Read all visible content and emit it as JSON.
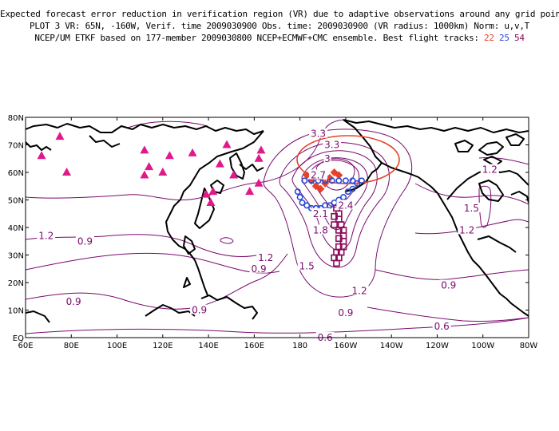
{
  "header": {
    "line1": "Expected forecast error reduction in verification region (VR) due to adaptive observations around any grid point.",
    "line2": "PLOT 3 VR: 65N, -160W, Verif. time 2009030900 Obs. time: 2009030900 (VR radius: 1000km) Norm: u,v,T",
    "line3_prefix": "NCEP/UM ETKF based on 177-member 2009030800 NCEP+ECMWF+CMC ensemble. Best flight tracks:",
    "track_22": "22",
    "track_25": "25",
    "track_54": "54"
  },
  "colors": {
    "track_22": "#e8412a",
    "track_25": "#2a4ad8",
    "track_54": "#8a0a5a",
    "contour": "#7a0a6e",
    "triangle": "#e0198a",
    "coast": "#000000"
  },
  "axes": {
    "x_ticks": [
      "60E",
      "80E",
      "100E",
      "120E",
      "140E",
      "160E",
      "180",
      "160W",
      "140W",
      "120W",
      "100W",
      "80W"
    ],
    "y_ticks": [
      "80N",
      "70N",
      "60N",
      "50N",
      "40N",
      "30N",
      "20N",
      "10N",
      "EQ"
    ]
  },
  "map_data": {
    "lon_range": [
      60,
      280
    ],
    "lat_range": [
      0,
      80
    ],
    "triangle_sites": [
      {
        "lon": 67,
        "lat": 66
      },
      {
        "lon": 75,
        "lat": 73
      },
      {
        "lon": 78,
        "lat": 60
      },
      {
        "lon": 112,
        "lat": 68
      },
      {
        "lon": 114,
        "lat": 62
      },
      {
        "lon": 112,
        "lat": 59
      },
      {
        "lon": 120,
        "lat": 60
      },
      {
        "lon": 123,
        "lat": 66
      },
      {
        "lon": 133,
        "lat": 67
      },
      {
        "lon": 139,
        "lat": 52
      },
      {
        "lon": 142,
        "lat": 53
      },
      {
        "lon": 141,
        "lat": 49
      },
      {
        "lon": 145,
        "lat": 63
      },
      {
        "lon": 148,
        "lat": 70
      },
      {
        "lon": 151,
        "lat": 59
      },
      {
        "lon": 163,
        "lat": 68
      },
      {
        "lon": 162,
        "lat": 65
      },
      {
        "lon": 158,
        "lat": 53
      },
      {
        "lon": 162,
        "lat": 56
      }
    ],
    "track_22": [
      {
        "lon": 183,
        "lat": 59
      },
      {
        "lon": 185,
        "lat": 57
      },
      {
        "lon": 187,
        "lat": 55
      },
      {
        "lon": 189,
        "lat": 54
      },
      {
        "lon": 191,
        "lat": 56
      },
      {
        "lon": 193,
        "lat": 58
      },
      {
        "lon": 195,
        "lat": 60
      },
      {
        "lon": 197,
        "lat": 59
      }
    ],
    "track_25": [
      {
        "lon": 179,
        "lat": 53
      },
      {
        "lon": 180,
        "lat": 51
      },
      {
        "lon": 181,
        "lat": 49
      },
      {
        "lon": 183,
        "lat": 48
      },
      {
        "lon": 185,
        "lat": 47
      },
      {
        "lon": 187,
        "lat": 47
      },
      {
        "lon": 189,
        "lat": 47
      },
      {
        "lon": 191,
        "lat": 48
      },
      {
        "lon": 193,
        "lat": 48
      },
      {
        "lon": 195,
        "lat": 49
      },
      {
        "lon": 197,
        "lat": 50
      },
      {
        "lon": 199,
        "lat": 51
      },
      {
        "lon": 201,
        "lat": 53
      },
      {
        "lon": 203,
        "lat": 54
      },
      {
        "lon": 205,
        "lat": 56
      },
      {
        "lon": 207,
        "lat": 57
      },
      {
        "lon": 203,
        "lat": 57
      },
      {
        "lon": 200,
        "lat": 57
      },
      {
        "lon": 197,
        "lat": 57
      },
      {
        "lon": 194,
        "lat": 57
      },
      {
        "lon": 191,
        "lat": 57
      },
      {
        "lon": 188,
        "lat": 57
      },
      {
        "lon": 185,
        "lat": 57
      },
      {
        "lon": 182,
        "lat": 57
      }
    ],
    "track_54": [
      {
        "lon": 196,
        "lat": 47
      },
      {
        "lon": 197,
        "lat": 45
      },
      {
        "lon": 197,
        "lat": 43
      },
      {
        "lon": 198,
        "lat": 41
      },
      {
        "lon": 199,
        "lat": 39
      },
      {
        "lon": 199,
        "lat": 37
      },
      {
        "lon": 199,
        "lat": 35
      },
      {
        "lon": 199,
        "lat": 33
      },
      {
        "lon": 198,
        "lat": 31
      },
      {
        "lon": 197,
        "lat": 29
      },
      {
        "lon": 196,
        "lat": 27
      },
      {
        "lon": 195,
        "lat": 29
      },
      {
        "lon": 196,
        "lat": 31
      },
      {
        "lon": 197,
        "lat": 33
      },
      {
        "lon": 197,
        "lat": 36
      },
      {
        "lon": 197,
        "lat": 39
      },
      {
        "lon": 195,
        "lat": 41
      },
      {
        "lon": 195,
        "lat": 44
      }
    ],
    "verification_circle": {
      "lon": 200,
      "lat": 65
    },
    "contour_labels": [
      {
        "text": "1.2",
        "lon": 69,
        "lat": 37
      },
      {
        "text": "0.9",
        "lon": 86,
        "lat": 35
      },
      {
        "text": "0.9",
        "lon": 81,
        "lat": 13
      },
      {
        "text": "0.9",
        "lon": 136,
        "lat": 10
      },
      {
        "text": "0.9",
        "lon": 162,
        "lat": 25
      },
      {
        "text": "1.2",
        "lon": 165,
        "lat": 29
      },
      {
        "text": "1.5",
        "lon": 183,
        "lat": 26
      },
      {
        "text": "1.8",
        "lon": 189,
        "lat": 39
      },
      {
        "text": "2.1",
        "lon": 189,
        "lat": 45
      },
      {
        "text": "2.4",
        "lon": 200,
        "lat": 48
      },
      {
        "text": "2.7",
        "lon": 188,
        "lat": 59
      },
      {
        "text": "3",
        "lon": 192,
        "lat": 65
      },
      {
        "text": "3.3",
        "lon": 194,
        "lat": 70
      },
      {
        "text": "3.3",
        "lon": 188,
        "lat": 74
      },
      {
        "text": "1.2",
        "lon": 206,
        "lat": 17
      },
      {
        "text": "0.9",
        "lon": 200,
        "lat": 9
      },
      {
        "text": "0.9",
        "lon": 245,
        "lat": 19
      },
      {
        "text": "0.6",
        "lon": 242,
        "lat": 4
      },
      {
        "text": "0.6",
        "lon": 191,
        "lat": 0
      },
      {
        "text": "1.2",
        "lon": 263,
        "lat": 61
      },
      {
        "text": "1.5",
        "lon": 255,
        "lat": 47
      },
      {
        "text": "1.2",
        "lon": 253,
        "lat": 39
      }
    ]
  }
}
